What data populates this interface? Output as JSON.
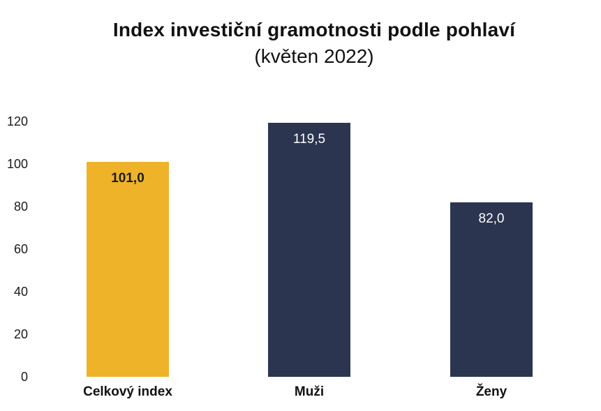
{
  "title": {
    "line1": "Index investiční gramotnosti podle pohlaví",
    "line2": "(květen 2022)"
  },
  "chart_data": {
    "type": "bar",
    "title": "Index investiční gramotnosti podle pohlaví",
    "subtitle": "(květen 2022)",
    "categories": [
      "Celkový index",
      "Muži",
      "Ženy"
    ],
    "values": [
      101.0,
      119.5,
      82.0
    ],
    "value_labels": [
      "101,0",
      "119,5",
      "82,0"
    ],
    "bar_colors": [
      "#EFB32A",
      "#2B3550",
      "#2B3550"
    ],
    "value_label_colors": [
      "#1C1C1C",
      "#FFFFFF",
      "#FFFFFF"
    ],
    "value_label_bold": [
      true,
      false,
      false
    ],
    "xlabel": "",
    "ylabel": "",
    "ylim": [
      0,
      120
    ],
    "yticks": [
      0,
      20,
      40,
      60,
      80,
      100,
      120
    ],
    "grid": false,
    "legend": "none",
    "background": "#FFFFFF"
  }
}
